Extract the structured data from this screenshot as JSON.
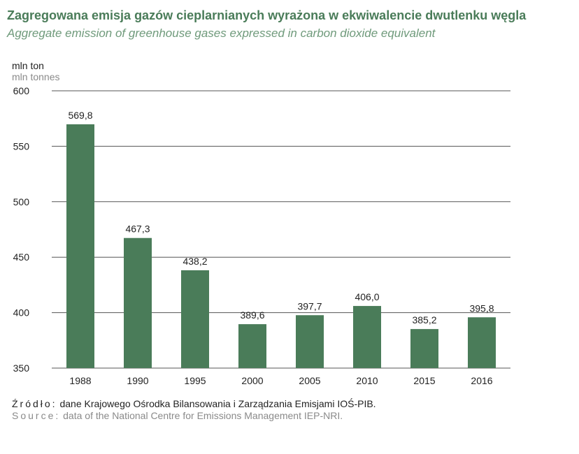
{
  "title": {
    "pl": "Zagregowana emisja gazów cieplarnianych wyrażona w ekwiwalencie dwutlenku węgla",
    "en": "Aggregate emission of greenhouse gases expressed in carbon dioxide equivalent"
  },
  "unit": {
    "pl": "mln ton",
    "en": "mln tonnes"
  },
  "source": {
    "pl_label": "Źródło:",
    "pl_text": " dane Krajowego Ośrodka Bilansowania i Zarządzania Emisjami IOŚ-PIB.",
    "en_label": "Source:",
    "en_text": " data of the National Centre for Emissions Management IEP-NRI."
  },
  "colors": {
    "bar": "#4a7c59",
    "title": "#4a7c59",
    "grid": "#555555"
  },
  "chart_data": {
    "type": "bar",
    "categories": [
      "1988",
      "1990",
      "1995",
      "2000",
      "2005",
      "2010",
      "2015",
      "2016"
    ],
    "values": [
      569.8,
      467.3,
      438.2,
      389.6,
      397.7,
      406.0,
      385.2,
      395.8
    ],
    "value_labels": [
      "569,8",
      "467,3",
      "438,2",
      "389,6",
      "397,7",
      "406,0",
      "385,2",
      "395,8"
    ],
    "ylim": [
      350,
      600
    ],
    "yticks": [
      350,
      400,
      450,
      500,
      550,
      600
    ],
    "grid": true
  }
}
